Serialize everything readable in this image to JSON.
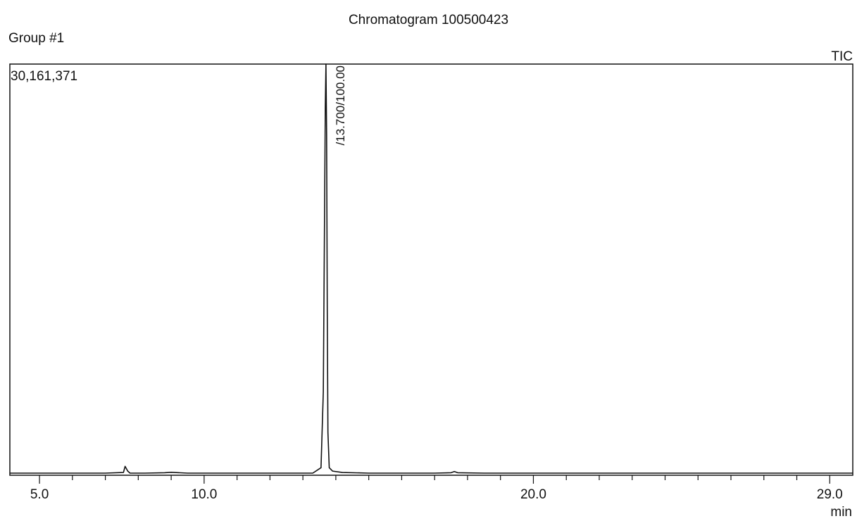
{
  "chart_data": {
    "type": "line",
    "title": "Chromatogram 100500423",
    "group_label": "Group #1",
    "trace_label": "TIC",
    "y_max_label": "30,161,371",
    "xlabel": "min",
    "xlim": [
      4.1,
      29.7
    ],
    "ylim": [
      0,
      30161371
    ],
    "x_tick_labels": [
      "5.0",
      "10.0",
      "20.0",
      "29.0"
    ],
    "x_tick_values": [
      5.0,
      10.0,
      20.0,
      29.0
    ],
    "minor_ticks_every": 1.0,
    "x_axis_line": false,
    "peak_annotations": [
      {
        "x": 13.7,
        "text": "/13.700/100.00"
      }
    ],
    "series": [
      {
        "x": [
          4.1,
          7.0,
          7.55,
          7.6,
          7.68,
          7.75,
          8.2,
          8.8,
          9.0,
          9.5,
          10.5,
          11.5,
          12.5,
          13.3,
          13.55,
          13.62,
          13.66,
          13.68,
          13.7,
          13.72,
          13.74,
          13.76,
          13.8,
          13.9,
          14.2,
          15.0,
          16.0,
          17.0,
          17.5,
          17.6,
          17.7,
          18.5,
          20.0,
          22.0,
          25.0,
          28.0,
          29.7
        ],
        "y": [
          0,
          0,
          50000,
          500000,
          150000,
          0,
          0,
          30000,
          60000,
          0,
          0,
          0,
          0,
          0,
          400000,
          6000000,
          20000000,
          27000000,
          30161371,
          25000000,
          12000000,
          3000000,
          400000,
          150000,
          50000,
          0,
          0,
          0,
          30000,
          120000,
          30000,
          0,
          0,
          0,
          0,
          0,
          0
        ]
      }
    ]
  }
}
